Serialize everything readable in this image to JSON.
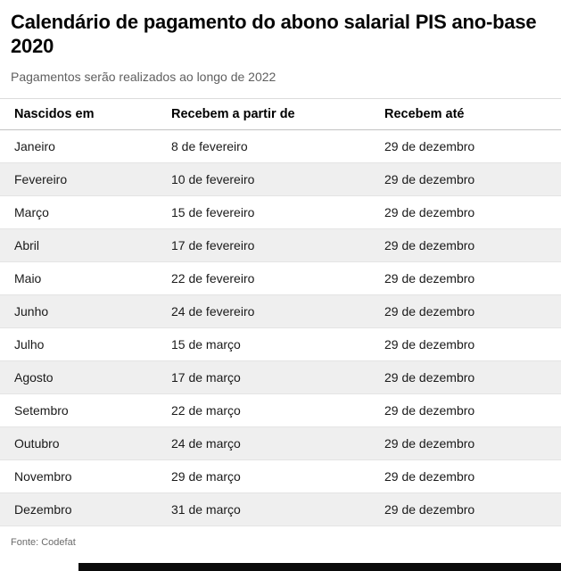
{
  "header": {
    "title": "Calendário de pagamento do abono salarial PIS ano-base 2020",
    "subtitle": "Pagamentos serão realizados ao longo de 2022"
  },
  "footer": {
    "source": "Fonte: Codefat"
  },
  "colors": {
    "background": "#ffffff",
    "alt_row": "#efefef",
    "row_divider": "#e4e4e4",
    "header_divider": "#c2c2c2",
    "title_text": "#050505",
    "subtitle_text": "#5f5f5f",
    "bottom_bar": "#0a0a0a"
  },
  "chart_data": {
    "type": "table",
    "title": "Calendário de pagamento do abono salarial PIS ano-base 2020",
    "subtitle": "Pagamentos serão realizados ao longo de 2022",
    "source": "Fonte: Codefat",
    "columns": [
      "Nascidos em",
      "Recebem a partir de",
      "Recebem até"
    ],
    "rows": [
      [
        "Janeiro",
        "8 de fevereiro",
        "29 de dezembro"
      ],
      [
        "Fevereiro",
        "10 de fevereiro",
        "29 de dezembro"
      ],
      [
        "Março",
        "15 de fevereiro",
        "29 de dezembro"
      ],
      [
        "Abril",
        "17 de fevereiro",
        "29 de dezembro"
      ],
      [
        "Maio",
        "22 de fevereiro",
        "29 de dezembro"
      ],
      [
        "Junho",
        "24 de fevereiro",
        "29 de dezembro"
      ],
      [
        "Julho",
        "15 de março",
        "29 de dezembro"
      ],
      [
        "Agosto",
        "17 de março",
        "29 de dezembro"
      ],
      [
        "Setembro",
        "22 de março",
        "29 de dezembro"
      ],
      [
        "Outubro",
        "24 de março",
        "29 de dezembro"
      ],
      [
        "Novembro",
        "29 de março",
        "29 de dezembro"
      ],
      [
        "Dezembro",
        "31 de março",
        "29 de dezembro"
      ]
    ],
    "layout": {
      "row_alternating": true,
      "legend": false,
      "grid": false
    }
  }
}
